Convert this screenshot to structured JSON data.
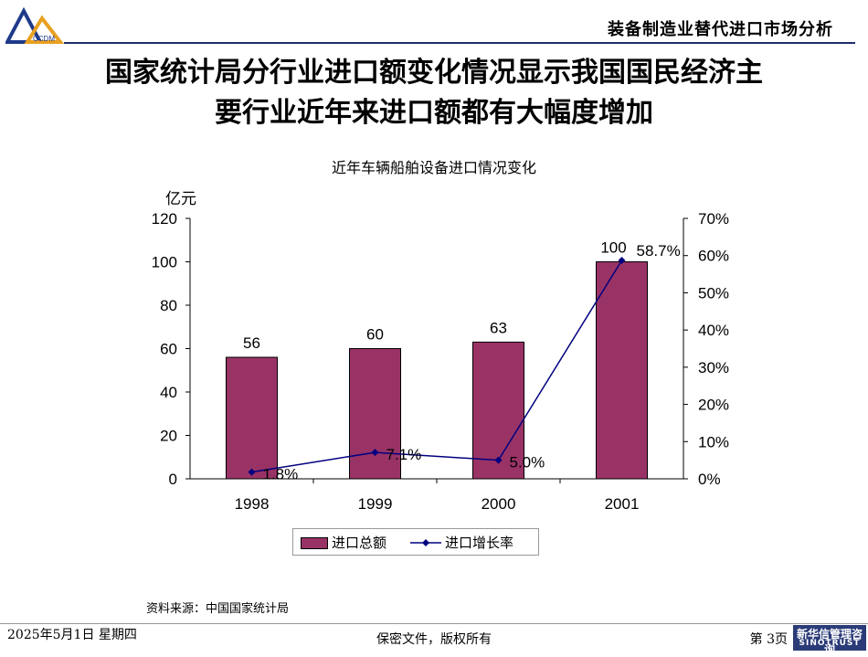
{
  "header": {
    "title": "装备制造业替代进口市场分析",
    "logo_text": "CCDM"
  },
  "slide": {
    "title_line1": "国家统计局分行业进口额变化情况显示我国国民经济主",
    "title_line2": "要行业近年来进口额都有大幅度增加"
  },
  "chart_data": {
    "type": "bar",
    "title": "近年车辆船舶设备进口情况变化",
    "ylabel": "亿元",
    "categories": [
      "1998",
      "1999",
      "2000",
      "2001"
    ],
    "series": [
      {
        "name": "进口总额",
        "type": "bar",
        "axis": "left",
        "values": [
          56,
          60,
          63,
          100
        ],
        "labels": [
          "56",
          "60",
          "63",
          "100"
        ],
        "color": "#993366"
      },
      {
        "name": "进口增长率",
        "type": "line",
        "axis": "right",
        "values": [
          1.8,
          7.1,
          5.0,
          58.7
        ],
        "labels": [
          "1.8%",
          "7.1%",
          "5.0%",
          "58.7%"
        ],
        "color": "#000080"
      }
    ],
    "ylim": [
      0,
      120
    ],
    "yticks": [
      "0",
      "20",
      "40",
      "60",
      "80",
      "100",
      "120"
    ],
    "y2lim": [
      0,
      70
    ],
    "y2ticks": [
      "0%",
      "10%",
      "20%",
      "30%",
      "40%",
      "50%",
      "60%",
      "70%"
    ],
    "legend": "bottom",
    "grid": false
  },
  "source": "资料来源：中国国家统计局",
  "footer": {
    "date": "2025年5月1日 星期四",
    "center": "保密文件，版权所有",
    "page": "第 3页"
  },
  "brand": {
    "cn": "新华信管理咨询",
    "en": "SINOTRUST"
  },
  "colors": {
    "bar": "#993366",
    "line": "#000080",
    "brand": "#2a3b78"
  }
}
